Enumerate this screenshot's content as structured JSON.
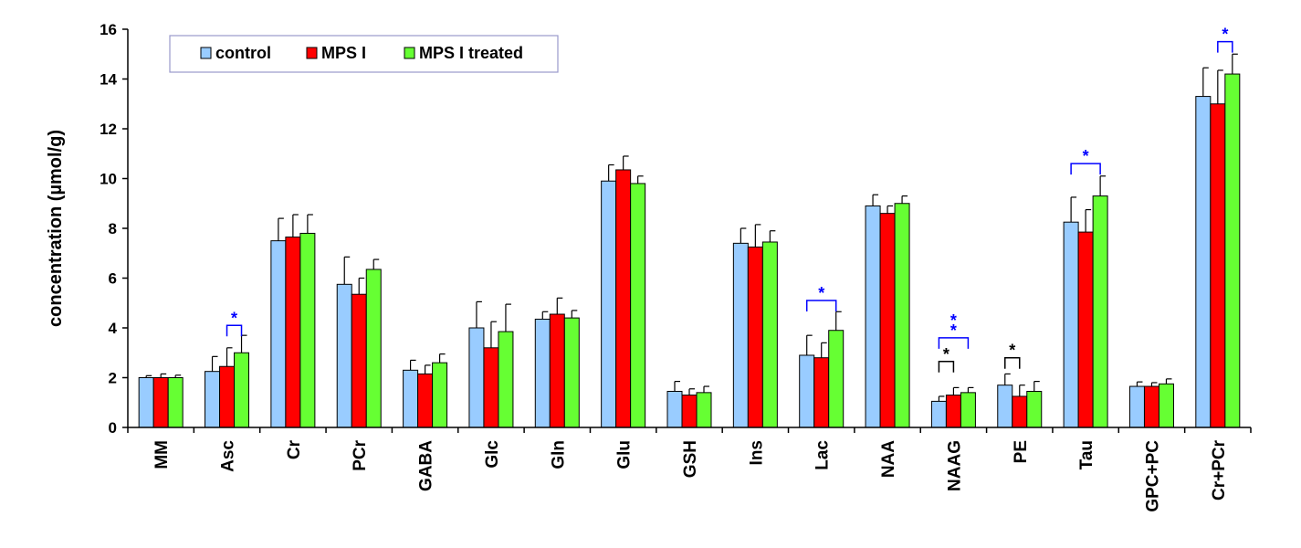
{
  "chart_data": {
    "type": "bar",
    "title": "",
    "xlabel": "",
    "ylabel": "concentration (µmol/g)",
    "ylim": [
      0,
      16
    ],
    "yticks": [
      0,
      2,
      4,
      6,
      8,
      10,
      12,
      14,
      16
    ],
    "grid": false,
    "legend_position": "top-left",
    "categories": [
      "MM",
      "Asc",
      "Cr",
      "PCr",
      "GABA",
      "Glc",
      "Gln",
      "Glu",
      "GSH",
      "Ins",
      "Lac",
      "NAA",
      "NAAG",
      "PE",
      "Tau",
      "GPC+PC",
      "Cr+PCr"
    ],
    "series": [
      {
        "name": "control",
        "color": "#99ccff",
        "values": [
          2.0,
          2.25,
          7.5,
          5.75,
          2.3,
          4.0,
          4.35,
          9.9,
          1.45,
          7.4,
          2.9,
          8.9,
          1.05,
          1.7,
          8.25,
          1.65,
          13.3
        ],
        "errors": [
          0.08,
          0.6,
          0.9,
          1.1,
          0.4,
          1.05,
          0.3,
          0.65,
          0.4,
          0.6,
          0.8,
          0.45,
          0.2,
          0.45,
          1.0,
          0.18,
          1.15
        ]
      },
      {
        "name": "MPS I",
        "color": "#ff0000",
        "values": [
          2.0,
          2.45,
          7.65,
          5.35,
          2.15,
          3.2,
          4.55,
          10.35,
          1.3,
          7.25,
          2.8,
          8.6,
          1.3,
          1.25,
          7.85,
          1.65,
          13.0
        ],
        "errors": [
          0.15,
          0.75,
          0.9,
          0.65,
          0.35,
          1.05,
          0.65,
          0.55,
          0.25,
          0.9,
          0.6,
          0.3,
          0.3,
          0.45,
          0.9,
          0.15,
          1.35
        ]
      },
      {
        "name": "MPS I treated",
        "color": "#66ff33",
        "values": [
          2.0,
          3.0,
          7.8,
          6.35,
          2.6,
          3.85,
          4.4,
          9.8,
          1.4,
          7.45,
          3.9,
          9.0,
          1.4,
          1.45,
          9.3,
          1.75,
          14.2
        ],
        "errors": [
          0.1,
          0.7,
          0.75,
          0.4,
          0.35,
          1.1,
          0.3,
          0.3,
          0.25,
          0.45,
          0.75,
          0.3,
          0.2,
          0.4,
          0.8,
          0.2,
          0.8
        ]
      }
    ],
    "annotations": [
      {
        "category": "Asc",
        "series_from": 1,
        "series_to": 2,
        "label": "*",
        "color": "#0000ff",
        "y": 4.1
      },
      {
        "category": "Lac",
        "series_from": 0,
        "series_to": 2,
        "label": "*",
        "color": "#0000ff",
        "y": 5.1
      },
      {
        "category": "NAAG",
        "series_from": 0,
        "series_to": 1,
        "label": "*",
        "color": "#000000",
        "y": 2.65
      },
      {
        "category": "NAAG",
        "series_from": 0,
        "series_to": 2,
        "label": "**",
        "color": "#0000ff",
        "y": 3.6
      },
      {
        "category": "PE",
        "series_from": 0,
        "series_to": 1,
        "label": "*",
        "color": "#000000",
        "y": 2.8
      },
      {
        "category": "Tau",
        "series_from": 0,
        "series_to": 2,
        "label": "*",
        "color": "#0000ff",
        "y": 10.6
      },
      {
        "category": "Cr+PCr",
        "series_from": 1,
        "series_to": 2,
        "label": "*",
        "color": "#0000ff",
        "y": 15.5
      }
    ]
  }
}
